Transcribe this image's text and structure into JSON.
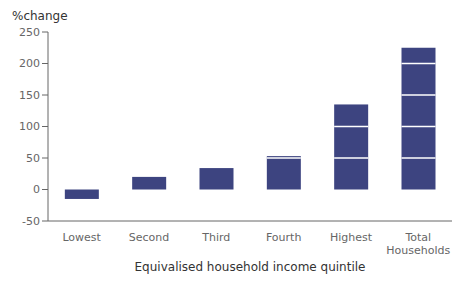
{
  "chart_data": {
    "type": "bar",
    "categories": [
      "Lowest",
      "Second",
      "Third",
      "Fourth",
      "Highest",
      "Total\nHouseholds"
    ],
    "values": [
      -15,
      20,
      34,
      53,
      135,
      225
    ],
    "color": "#3d4480",
    "xlabel": "Equivalised household income quintile",
    "ylabel": "%change",
    "ylim": [
      -50,
      250
    ],
    "yticks": [
      -50,
      0,
      50,
      100,
      150,
      200,
      250
    ],
    "grid": false
  }
}
